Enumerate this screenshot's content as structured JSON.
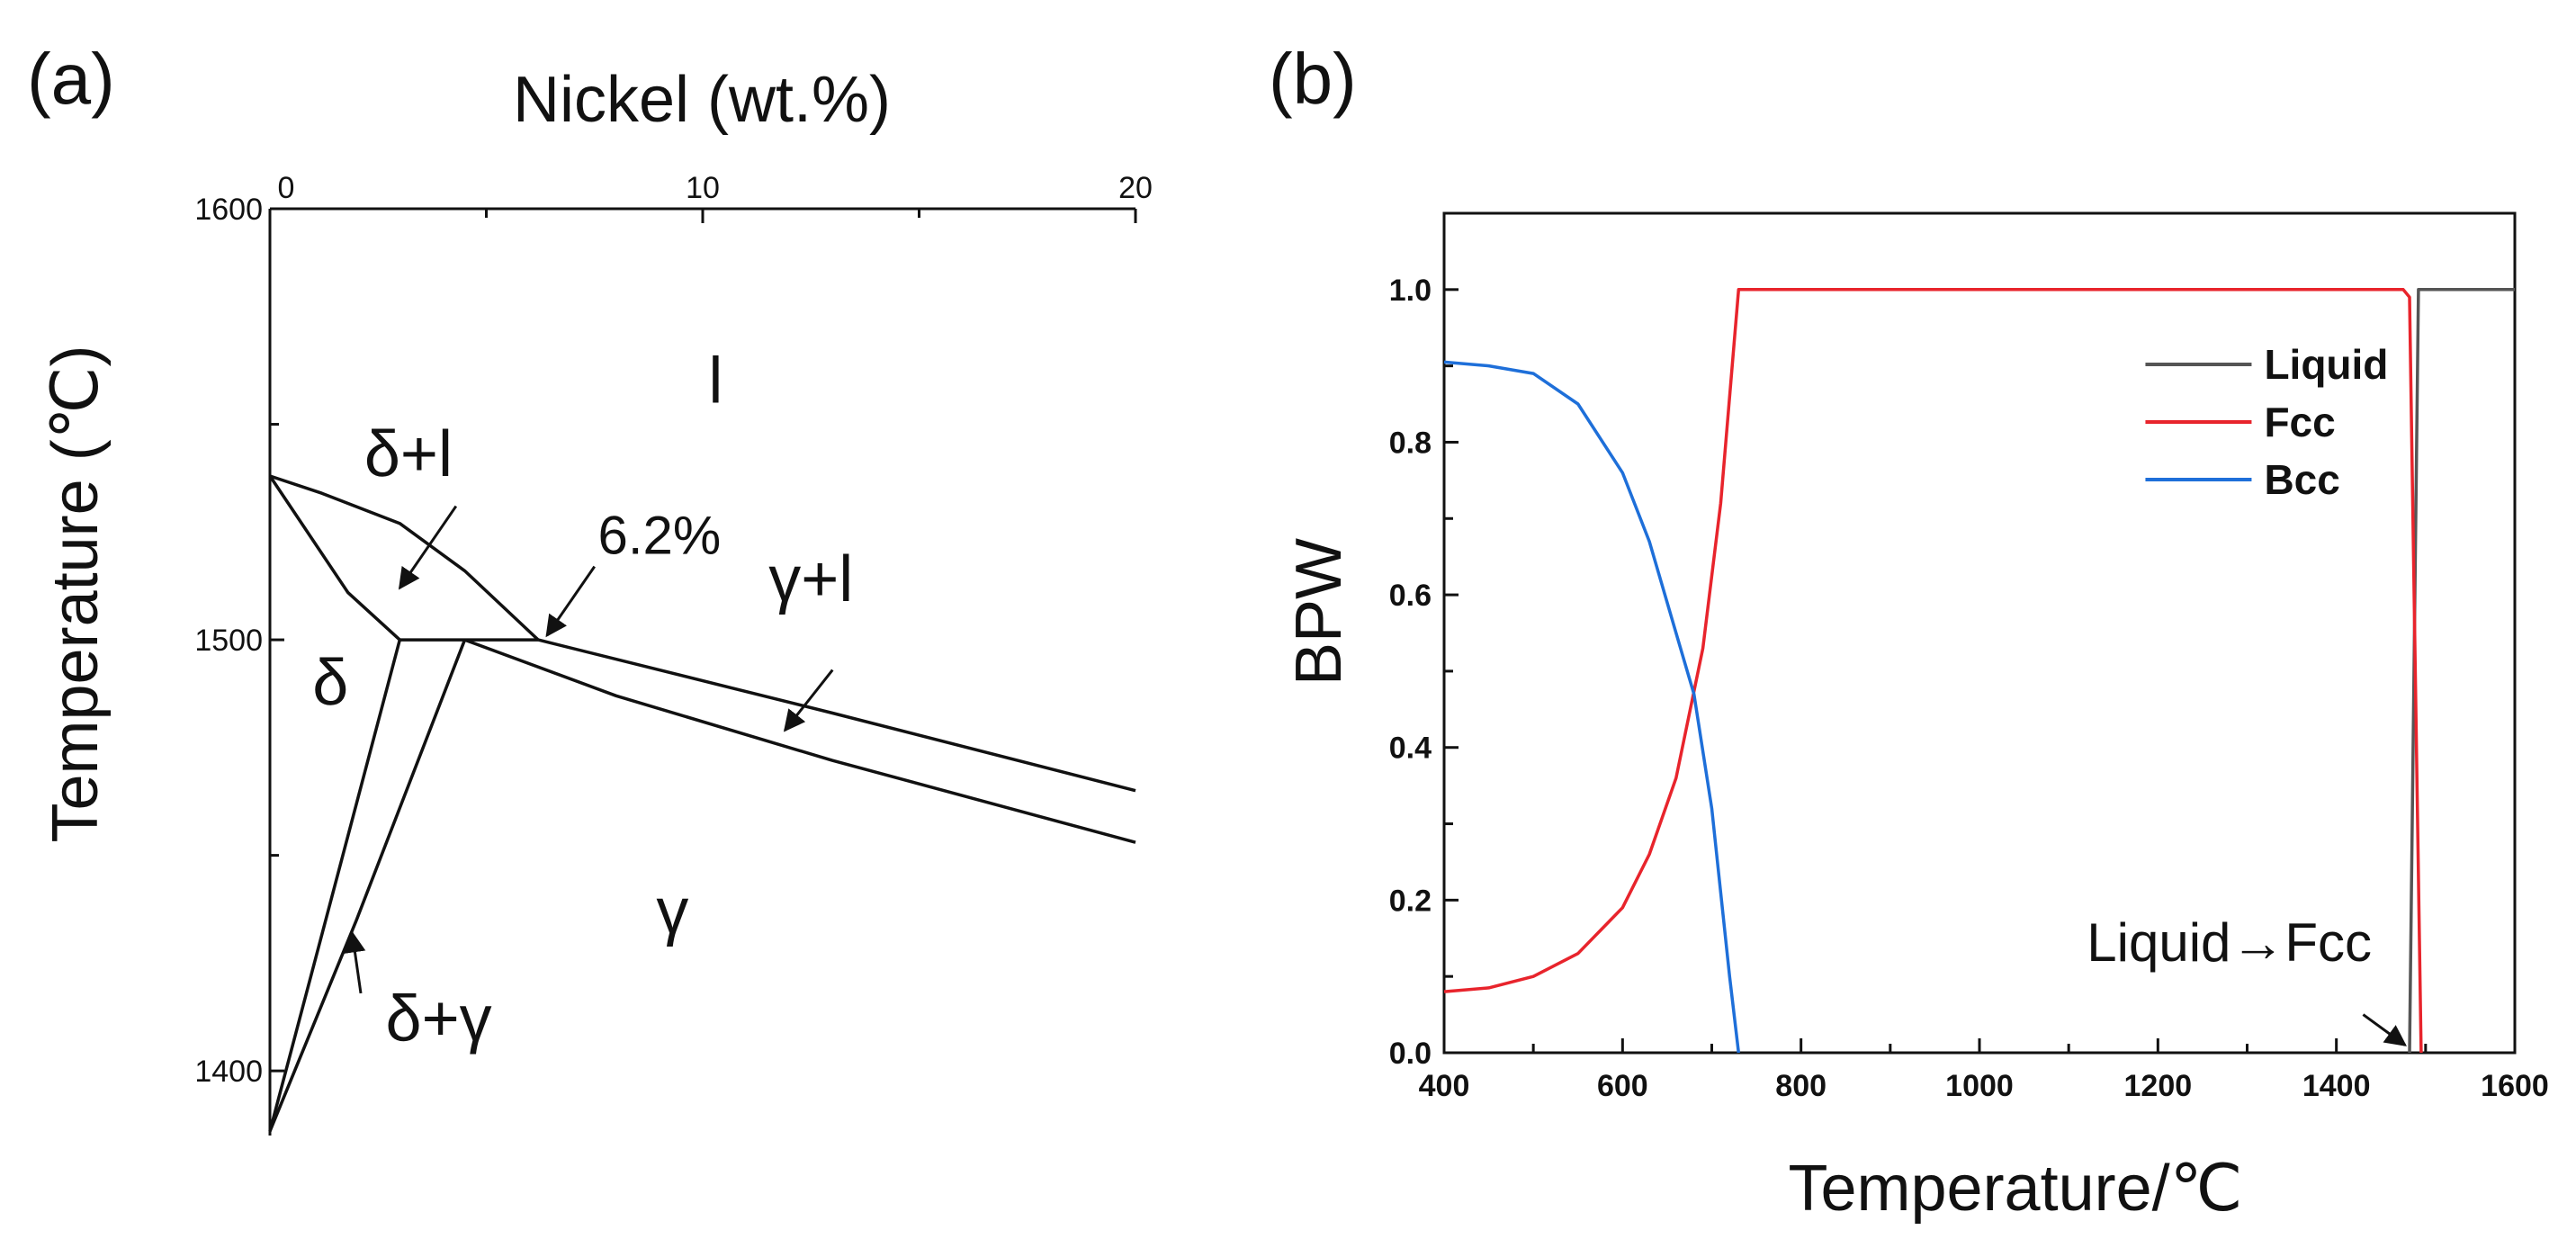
{
  "figure": {
    "panel_a_label": "(a)",
    "panel_b_label": "(b)"
  },
  "chart_data": [
    {
      "id": "a",
      "type": "line",
      "subtype": "phase-diagram",
      "title": "",
      "xlabel": "Nickel (wt.%)",
      "ylabel": "Temperature (℃)",
      "xlim": [
        0,
        20
      ],
      "ylim": [
        1385,
        1600
      ],
      "xticks": [
        0,
        10,
        20
      ],
      "yticks": [
        1400,
        1500,
        1600
      ],
      "grid": false,
      "boundaries": [
        {
          "name": "liquidus-delta",
          "x": [
            0,
            1.2,
            3.0,
            4.5,
            6.2
          ],
          "y": [
            1538,
            1534,
            1527,
            1516,
            1500
          ]
        },
        {
          "name": "solidus-delta",
          "x": [
            0,
            0.8,
            1.8,
            3.0
          ],
          "y": [
            1538,
            1526,
            1511,
            1500
          ]
        },
        {
          "name": "peritectic-line",
          "x": [
            3.0,
            6.2
          ],
          "y": [
            1500,
            1500
          ]
        },
        {
          "name": "liquidus-gamma",
          "x": [
            6.2,
            13,
            20
          ],
          "y": [
            1500,
            1483,
            1465
          ]
        },
        {
          "name": "solidus-gamma",
          "x": [
            4.5,
            8,
            13,
            20
          ],
          "y": [
            1500,
            1487,
            1472,
            1453
          ]
        },
        {
          "name": "delta-gamma-upper",
          "x": [
            3.0,
            0
          ],
          "y": [
            1500,
            1386
          ]
        },
        {
          "name": "delta-gamma-lower",
          "x": [
            4.5,
            2.0,
            0
          ],
          "y": [
            1500,
            1435,
            1386
          ]
        }
      ],
      "region_labels": [
        {
          "text": "l",
          "x": 10.3,
          "y": 1555
        },
        {
          "text": "δ+l",
          "x": 3.2,
          "y": 1538
        },
        {
          "text": "δ",
          "x": 1.4,
          "y": 1485
        },
        {
          "text": "γ+l",
          "x": 12.5,
          "y": 1509
        },
        {
          "text": "γ",
          "x": 9.3,
          "y": 1432
        },
        {
          "text": "δ+γ",
          "x": 3.9,
          "y": 1407
        }
      ],
      "annotations": [
        {
          "text": "6.2%",
          "x": 9.0,
          "y": 1520,
          "arrow_from": [
            7.5,
            1517
          ],
          "arrow_to": [
            6.4,
            1501
          ]
        },
        {
          "text": "",
          "x": 0,
          "y": 0,
          "arrow_from": [
            4.3,
            1531
          ],
          "arrow_to": [
            3.0,
            1512
          ]
        },
        {
          "text": "",
          "x": 0,
          "y": 0,
          "arrow_from": [
            13.0,
            1493
          ],
          "arrow_to": [
            11.9,
            1479
          ]
        },
        {
          "text": "",
          "x": 0,
          "y": 0,
          "arrow_from": [
            2.1,
            1418
          ],
          "arrow_to": [
            1.9,
            1432
          ]
        }
      ]
    },
    {
      "id": "b",
      "type": "line",
      "title": "",
      "xlabel": "Temperature/℃",
      "ylabel": "BPW",
      "xlim": [
        400,
        1600
      ],
      "ylim": [
        0.0,
        1.1
      ],
      "xticks": [
        400,
        600,
        800,
        1000,
        1200,
        1400,
        1600
      ],
      "yticks": [
        0.0,
        0.2,
        0.4,
        0.6,
        0.8,
        1.0
      ],
      "grid": false,
      "legend_position": "top-right",
      "series": [
        {
          "name": "Liquid",
          "color": "#555555",
          "x": [
            1482,
            1492,
            1600
          ],
          "y": [
            0.0,
            1.0,
            1.0
          ]
        },
        {
          "name": "Fcc",
          "color": "#e8242c",
          "x": [
            400,
            450,
            500,
            550,
            600,
            630,
            660,
            690,
            710,
            730,
            1475,
            1482,
            1495
          ],
          "y": [
            0.08,
            0.085,
            0.1,
            0.13,
            0.19,
            0.26,
            0.36,
            0.53,
            0.72,
            1.0,
            1.0,
            0.99,
            0.0
          ]
        },
        {
          "name": "Bcc",
          "color": "#1e6fd9",
          "x": [
            400,
            450,
            500,
            550,
            600,
            630,
            660,
            680,
            700,
            720,
            730
          ],
          "y": [
            0.905,
            0.9,
            0.89,
            0.85,
            0.76,
            0.67,
            0.55,
            0.47,
            0.32,
            0.1,
            0.0
          ]
        }
      ],
      "annotations": [
        {
          "text": "Liquid→Fcc",
          "x": 1280,
          "y": 0.12,
          "arrow_from": [
            1430,
            0.05
          ],
          "arrow_to": [
            1477,
            0.01
          ]
        }
      ]
    }
  ]
}
